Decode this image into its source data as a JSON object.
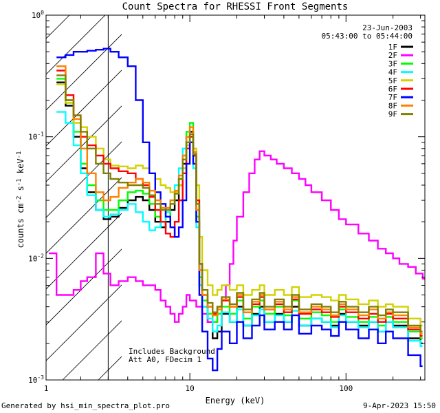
{
  "chart_data": {
    "type": "line",
    "title": "Count Spectra for RHESSI Front Segments",
    "xlabel": "Energy (keV)",
    "ylabel_parts": [
      "counts cm",
      "-2",
      " s",
      "-1",
      " keV",
      "-1"
    ],
    "xscale": "log",
    "yscale": "log",
    "xlim": [
      1.2,
      320
    ],
    "ylim": [
      0.001,
      1
    ],
    "x_tick_labels": [
      {
        "value": 1,
        "label": "1"
      },
      {
        "value": 10,
        "label": "10"
      },
      {
        "value": 100,
        "label": "100"
      }
    ],
    "y_tick_labels": [
      {
        "value": 1,
        "mantissa": "10",
        "exp": "0"
      },
      {
        "value": 0.1,
        "mantissa": "10",
        "exp": "-1"
      },
      {
        "value": 0.01,
        "mantissa": "10",
        "exp": "-2"
      },
      {
        "value": 0.001,
        "mantissa": "10",
        "exp": "-3"
      }
    ],
    "info_lines": [
      "23-Jun-2003",
      "05:43:00 to 05:44:00"
    ],
    "notes": [
      "Includes Background",
      "Att A0, FDecim 1"
    ],
    "shaded_region_xmax": 3.0,
    "legend_position": "top-right",
    "series": [
      {
        "name": "1F",
        "color": "#000000",
        "x": [
          1.4,
          1.6,
          1.8,
          2.0,
          2.2,
          2.5,
          2.8,
          3.1,
          3.5,
          4.0,
          4.5,
          5.0,
          5.5,
          6.0,
          6.5,
          7.0,
          7.5,
          8.0,
          8.5,
          9.0,
          9.5,
          10.0,
          10.5,
          11.0,
          11.5,
          12.0,
          13,
          14,
          15,
          16,
          18,
          20,
          22,
          25,
          28,
          30,
          35,
          40,
          45,
          50,
          60,
          70,
          80,
          90,
          100,
          120,
          140,
          160,
          180,
          200,
          250,
          300
        ],
        "y": [
          0.28,
          0.18,
          0.1,
          0.055,
          0.035,
          0.025,
          0.021,
          0.022,
          0.026,
          0.03,
          0.032,
          0.03,
          0.025,
          0.02,
          0.018,
          0.02,
          0.025,
          0.03,
          0.04,
          0.06,
          0.1,
          0.11,
          0.07,
          0.02,
          0.006,
          0.004,
          0.003,
          0.0022,
          0.0025,
          0.0035,
          0.003,
          0.004,
          0.0028,
          0.0035,
          0.004,
          0.003,
          0.0035,
          0.003,
          0.004,
          0.0028,
          0.0032,
          0.003,
          0.0028,
          0.0035,
          0.003,
          0.0028,
          0.003,
          0.0025,
          0.003,
          0.0028,
          0.0022,
          0.002
        ]
      },
      {
        "name": "2F",
        "color": "#ff00ff",
        "x": [
          1.25,
          1.4,
          1.6,
          1.8,
          2.0,
          2.2,
          2.5,
          2.8,
          3.1,
          3.5,
          4.0,
          4.5,
          5.0,
          5.5,
          6.0,
          6.5,
          7.0,
          7.5,
          8.0,
          8.5,
          9.0,
          9.5,
          10.0,
          11,
          12,
          13,
          14,
          15,
          16,
          17,
          18,
          19,
          20,
          22,
          24,
          26,
          28,
          30,
          33,
          36,
          40,
          45,
          50,
          55,
          60,
          70,
          80,
          90,
          100,
          120,
          140,
          160,
          180,
          200,
          220,
          250,
          280,
          310
        ],
        "y": [
          0.011,
          0.005,
          0.005,
          0.0055,
          0.0065,
          0.007,
          0.011,
          0.0075,
          0.006,
          0.0065,
          0.007,
          0.0065,
          0.006,
          0.006,
          0.0055,
          0.0045,
          0.004,
          0.0035,
          0.003,
          0.0035,
          0.004,
          0.005,
          0.0045,
          0.004,
          0.0035,
          0.003,
          0.003,
          0.0035,
          0.0045,
          0.006,
          0.009,
          0.014,
          0.022,
          0.035,
          0.05,
          0.065,
          0.076,
          0.07,
          0.065,
          0.06,
          0.055,
          0.05,
          0.045,
          0.04,
          0.035,
          0.03,
          0.025,
          0.021,
          0.019,
          0.016,
          0.014,
          0.012,
          0.011,
          0.01,
          0.009,
          0.0085,
          0.0075,
          0.0068
        ]
      },
      {
        "name": "3F",
        "color": "#00ff00",
        "x": [
          1.4,
          1.6,
          1.8,
          2.0,
          2.2,
          2.5,
          2.8,
          3.1,
          3.5,
          4.0,
          4.5,
          5.0,
          5.5,
          6.0,
          6.5,
          7.0,
          7.5,
          8.0,
          8.5,
          9.0,
          9.5,
          10.0,
          10.5,
          11.0,
          11.5,
          12.0,
          13,
          14,
          15,
          16,
          18,
          20,
          22,
          25,
          28,
          30,
          35,
          40,
          45,
          50,
          60,
          70,
          80,
          90,
          100,
          120,
          140,
          160,
          180,
          200,
          250,
          300
        ],
        "y": [
          0.3,
          0.19,
          0.11,
          0.06,
          0.04,
          0.03,
          0.025,
          0.025,
          0.03,
          0.035,
          0.036,
          0.034,
          0.028,
          0.022,
          0.02,
          0.022,
          0.028,
          0.035,
          0.045,
          0.07,
          0.11,
          0.13,
          0.075,
          0.022,
          0.007,
          0.0045,
          0.0035,
          0.003,
          0.0035,
          0.004,
          0.0035,
          0.0045,
          0.0032,
          0.004,
          0.0045,
          0.0035,
          0.004,
          0.0034,
          0.0045,
          0.0032,
          0.0036,
          0.0034,
          0.003,
          0.0038,
          0.0033,
          0.003,
          0.0033,
          0.0028,
          0.0033,
          0.003,
          0.0025,
          0.0022
        ]
      },
      {
        "name": "4F",
        "color": "#00ffff",
        "x": [
          1.4,
          1.6,
          1.8,
          2.0,
          2.2,
          2.5,
          2.8,
          3.1,
          3.5,
          4.0,
          4.5,
          5.0,
          5.5,
          6.0,
          6.5,
          7.0,
          7.5,
          8.0,
          8.5,
          9.0,
          9.5,
          10.0,
          10.5,
          11.0,
          11.5,
          12.0,
          13,
          14,
          15,
          16,
          18,
          20,
          22,
          25,
          28,
          30,
          35,
          40,
          45,
          50,
          60,
          70,
          80,
          90,
          100,
          120,
          140,
          160,
          180,
          200,
          250,
          300
        ],
        "y": [
          0.16,
          0.13,
          0.085,
          0.05,
          0.033,
          0.025,
          0.022,
          0.023,
          0.025,
          0.028,
          0.024,
          0.02,
          0.017,
          0.018,
          0.02,
          0.024,
          0.03,
          0.04,
          0.055,
          0.08,
          0.1,
          0.09,
          0.055,
          0.018,
          0.006,
          0.004,
          0.0032,
          0.0025,
          0.0028,
          0.0036,
          0.003,
          0.0038,
          0.0028,
          0.0034,
          0.0038,
          0.003,
          0.0034,
          0.003,
          0.0037,
          0.0028,
          0.0032,
          0.003,
          0.0027,
          0.0034,
          0.003,
          0.0027,
          0.003,
          0.0025,
          0.003,
          0.0027,
          0.0021,
          0.0019
        ]
      },
      {
        "name": "5F",
        "color": "#d2d200",
        "x": [
          1.4,
          1.6,
          1.8,
          2.0,
          2.2,
          2.5,
          2.8,
          3.1,
          3.5,
          4.0,
          4.5,
          5.0,
          5.5,
          6.0,
          6.5,
          7.0,
          7.5,
          8.0,
          8.5,
          9.0,
          9.5,
          10.0,
          10.5,
          11.0,
          11.5,
          12.0,
          13,
          14,
          15,
          16,
          18,
          20,
          22,
          25,
          28,
          30,
          35,
          40,
          45,
          50,
          60,
          70,
          80,
          90,
          100,
          120,
          140,
          160,
          180,
          200,
          250,
          300
        ],
        "y": [
          0.27,
          0.19,
          0.13,
          0.12,
          0.1,
          0.08,
          0.065,
          0.058,
          0.057,
          0.055,
          0.058,
          0.055,
          0.05,
          0.045,
          0.04,
          0.038,
          0.035,
          0.035,
          0.04,
          0.055,
          0.085,
          0.1,
          0.08,
          0.04,
          0.015,
          0.008,
          0.006,
          0.005,
          0.0055,
          0.006,
          0.0055,
          0.006,
          0.005,
          0.0055,
          0.006,
          0.005,
          0.0055,
          0.005,
          0.0058,
          0.0048,
          0.005,
          0.0048,
          0.0045,
          0.005,
          0.0046,
          0.0042,
          0.0045,
          0.004,
          0.0042,
          0.004,
          0.0032,
          0.0028
        ]
      },
      {
        "name": "6F",
        "color": "#ff0000",
        "x": [
          1.4,
          1.6,
          1.8,
          2.0,
          2.2,
          2.5,
          2.8,
          3.1,
          3.5,
          4.0,
          4.5,
          5.0,
          5.5,
          6.0,
          6.5,
          7.0,
          7.5,
          8.0,
          8.5,
          9.0,
          9.5,
          10.0,
          10.5,
          11.0,
          11.5,
          12.0,
          13,
          14,
          15,
          16,
          18,
          20,
          22,
          25,
          28,
          30,
          35,
          40,
          45,
          50,
          60,
          70,
          80,
          90,
          100,
          120,
          140,
          160,
          180,
          200,
          250,
          300
        ],
        "y": [
          0.35,
          0.22,
          0.15,
          0.1,
          0.085,
          0.07,
          0.06,
          0.055,
          0.052,
          0.05,
          0.045,
          0.04,
          0.032,
          0.025,
          0.02,
          0.016,
          0.015,
          0.02,
          0.03,
          0.05,
          0.08,
          0.1,
          0.07,
          0.03,
          0.009,
          0.005,
          0.004,
          0.0035,
          0.004,
          0.0045,
          0.004,
          0.0048,
          0.0036,
          0.0042,
          0.0048,
          0.0038,
          0.0042,
          0.0036,
          0.0046,
          0.0035,
          0.0038,
          0.0036,
          0.0033,
          0.004,
          0.0036,
          0.0032,
          0.0035,
          0.003,
          0.0035,
          0.0032,
          0.0026,
          0.0023
        ]
      },
      {
        "name": "7F",
        "color": "#0000ff",
        "x": [
          1.4,
          1.6,
          1.8,
          2.0,
          2.2,
          2.5,
          2.8,
          3.1,
          3.5,
          4.0,
          4.5,
          5.0,
          5.5,
          6.0,
          6.5,
          7.0,
          7.5,
          8.0,
          8.5,
          9.0,
          9.5,
          10.0,
          10.5,
          11.0,
          11.5,
          12.0,
          13,
          14,
          15,
          16,
          18,
          20,
          22,
          25,
          28,
          30,
          35,
          40,
          45,
          50,
          60,
          70,
          80,
          90,
          100,
          120,
          140,
          160,
          180,
          200,
          250,
          300
        ],
        "y": [
          0.45,
          0.47,
          0.5,
          0.5,
          0.51,
          0.52,
          0.53,
          0.5,
          0.45,
          0.38,
          0.2,
          0.09,
          0.05,
          0.035,
          0.028,
          0.022,
          0.018,
          0.015,
          0.018,
          0.03,
          0.06,
          0.09,
          0.06,
          0.02,
          0.005,
          0.0025,
          0.0015,
          0.0012,
          0.0018,
          0.0025,
          0.002,
          0.003,
          0.0022,
          0.0028,
          0.0034,
          0.0026,
          0.003,
          0.0026,
          0.0034,
          0.0024,
          0.0028,
          0.0026,
          0.0023,
          0.003,
          0.0026,
          0.0022,
          0.0026,
          0.002,
          0.0025,
          0.0022,
          0.0016,
          0.0013
        ]
      },
      {
        "name": "8F",
        "color": "#ff8000",
        "x": [
          1.4,
          1.6,
          1.8,
          2.0,
          2.2,
          2.5,
          2.8,
          3.1,
          3.5,
          4.0,
          4.5,
          5.0,
          5.5,
          6.0,
          6.5,
          7.0,
          7.5,
          8.0,
          8.5,
          9.0,
          9.5,
          10.0,
          10.5,
          11.0,
          11.5,
          12.0,
          13,
          14,
          15,
          16,
          18,
          20,
          22,
          25,
          28,
          30,
          35,
          40,
          45,
          50,
          60,
          70,
          80,
          90,
          100,
          120,
          140,
          160,
          180,
          200,
          250,
          300
        ],
        "y": [
          0.38,
          0.2,
          0.14,
          0.08,
          0.05,
          0.035,
          0.03,
          0.032,
          0.038,
          0.042,
          0.045,
          0.042,
          0.036,
          0.03,
          0.026,
          0.026,
          0.03,
          0.036,
          0.048,
          0.07,
          0.1,
          0.12,
          0.075,
          0.025,
          0.008,
          0.005,
          0.004,
          0.0034,
          0.0038,
          0.0046,
          0.004,
          0.005,
          0.0036,
          0.0044,
          0.005,
          0.0038,
          0.0044,
          0.0038,
          0.0048,
          0.0036,
          0.004,
          0.0038,
          0.0034,
          0.0042,
          0.0038,
          0.0034,
          0.0038,
          0.0032,
          0.0036,
          0.0034,
          0.0027,
          0.0024
        ]
      },
      {
        "name": "9F",
        "color": "#808000",
        "x": [
          1.4,
          1.6,
          1.8,
          2.0,
          2.2,
          2.5,
          2.8,
          3.1,
          3.5,
          4.0,
          4.5,
          5.0,
          5.5,
          6.0,
          6.5,
          7.0,
          7.5,
          8.0,
          8.5,
          9.0,
          9.5,
          10.0,
          10.5,
          11.0,
          11.5,
          12.0,
          13,
          14,
          15,
          16,
          18,
          20,
          22,
          25,
          28,
          30,
          35,
          40,
          45,
          50,
          60,
          70,
          80,
          90,
          100,
          120,
          140,
          160,
          180,
          200,
          250,
          300
        ],
        "y": [
          0.32,
          0.2,
          0.15,
          0.11,
          0.08,
          0.06,
          0.05,
          0.045,
          0.042,
          0.04,
          0.04,
          0.038,
          0.033,
          0.028,
          0.025,
          0.025,
          0.028,
          0.034,
          0.045,
          0.065,
          0.09,
          0.105,
          0.072,
          0.028,
          0.009,
          0.0055,
          0.0043,
          0.0036,
          0.004,
          0.0048,
          0.0042,
          0.0052,
          0.0038,
          0.0046,
          0.0052,
          0.004,
          0.0046,
          0.004,
          0.005,
          0.0038,
          0.0042,
          0.004,
          0.0036,
          0.0044,
          0.004,
          0.0036,
          0.004,
          0.0034,
          0.0038,
          0.0036,
          0.0028,
          0.0025
        ]
      }
    ]
  },
  "footer": {
    "left": "Generated by hsi_min_spectra_plot.pro",
    "right": "9-Apr-2023 15:50"
  }
}
